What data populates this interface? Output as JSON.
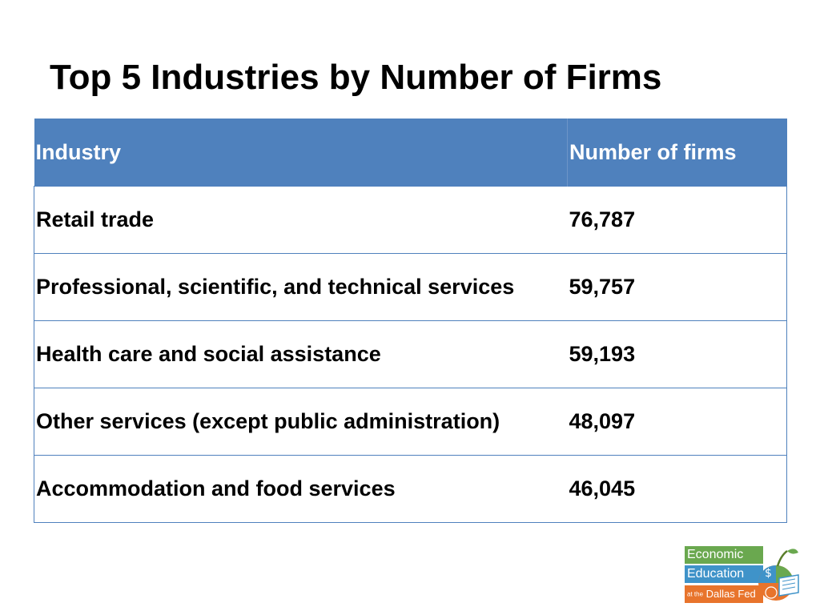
{
  "slide": {
    "title": "Top 5 Industries by Number of Firms"
  },
  "table": {
    "headers": [
      "Industry",
      "Number of firms"
    ],
    "rows": [
      [
        "Retail trade",
        "76,787"
      ],
      [
        "Professional, scientific, and technical services",
        "59,757"
      ],
      [
        "Health care and social assistance",
        "59,193"
      ],
      [
        "Other services (except public administration)",
        "48,097"
      ],
      [
        "Accommodation and food services",
        "46,045"
      ]
    ]
  },
  "logo": {
    "line1": "Economic",
    "line2": "Education",
    "line3_prefix": "at the",
    "line3_main": "Dallas Fed"
  },
  "colors": {
    "header_bg": "#4f81bd",
    "header_text": "#ffffff",
    "border": "#4f81bd",
    "logo_green": "#6aa84f",
    "logo_blue": "#3f93c9",
    "logo_orange": "#e8742c"
  }
}
